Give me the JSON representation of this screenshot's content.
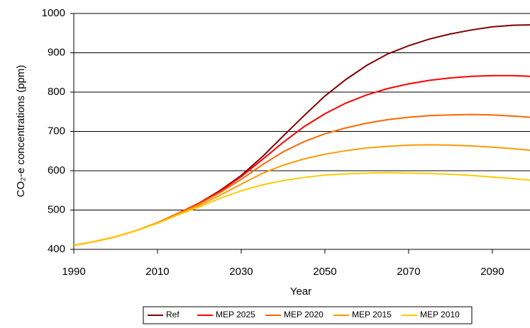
{
  "chart_data": {
    "type": "line",
    "xlabel": "Year",
    "ylabel": "CO₂-e concentrations (ppm)",
    "x": [
      1990,
      1995,
      2000,
      2005,
      2010,
      2015,
      2020,
      2025,
      2030,
      2035,
      2040,
      2045,
      2050,
      2055,
      2060,
      2065,
      2070,
      2075,
      2080,
      2085,
      2090,
      2095,
      2099
    ],
    "series": [
      {
        "name": "Ref",
        "color": "#800000",
        "values": [
          410,
          420,
          432,
          448,
          468,
          492,
          518,
          550,
          588,
          635,
          688,
          740,
          790,
          832,
          868,
          897,
          918,
          935,
          948,
          958,
          966,
          970,
          971
        ]
      },
      {
        "name": "MEP 2025",
        "color": "#ff0000",
        "values": [
          410,
          420,
          432,
          448,
          468,
          492,
          518,
          548,
          585,
          628,
          672,
          712,
          745,
          772,
          793,
          809,
          821,
          830,
          836,
          840,
          842,
          842,
          840
        ]
      },
      {
        "name": "MEP 2020",
        "color": "#ff6600",
        "values": [
          410,
          420,
          432,
          448,
          468,
          492,
          516,
          545,
          578,
          615,
          648,
          674,
          694,
          709,
          721,
          730,
          736,
          740,
          742,
          743,
          742,
          739,
          736
        ]
      },
      {
        "name": "MEP 2015",
        "color": "#ff9900",
        "values": [
          410,
          420,
          432,
          448,
          468,
          490,
          512,
          538,
          566,
          593,
          614,
          630,
          642,
          651,
          658,
          662,
          665,
          666,
          665,
          663,
          660,
          656,
          652
        ]
      },
      {
        "name": "MEP 2010",
        "color": "#ffcc00",
        "values": [
          410,
          420,
          432,
          448,
          466,
          488,
          508,
          530,
          549,
          564,
          575,
          583,
          589,
          592,
          594,
          595,
          594,
          593,
          591,
          588,
          584,
          580,
          576
        ]
      }
    ],
    "xlim": [
      1990,
      2099
    ],
    "ylim": [
      400,
      1000
    ],
    "xticks": [
      1990,
      2010,
      2030,
      2050,
      2070,
      2090
    ],
    "yticks": [
      400,
      500,
      600,
      700,
      800,
      900,
      1000
    ],
    "grid": true,
    "legend": "bottom"
  }
}
